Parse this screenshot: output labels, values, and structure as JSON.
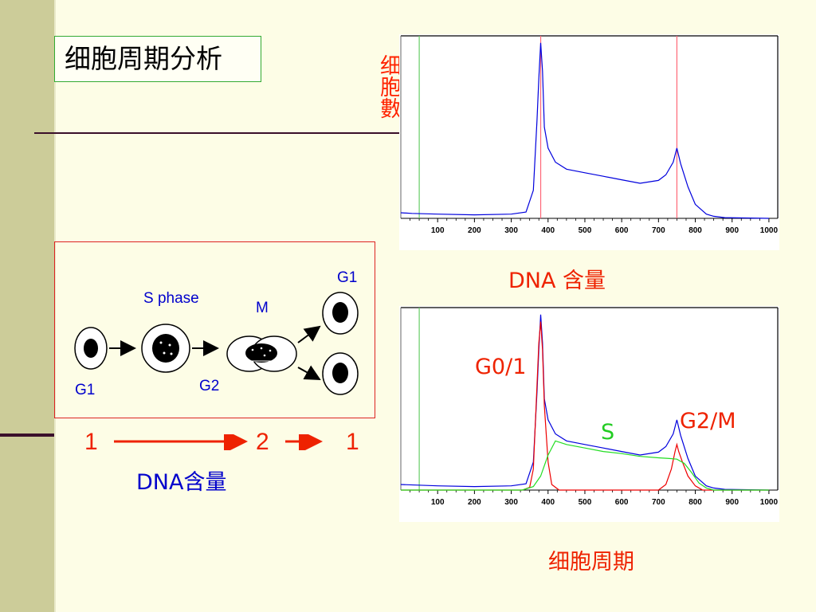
{
  "slide": {
    "title": "细胞周期分析",
    "colors": {
      "background": "#fdfde6",
      "band": "#cccc99",
      "red": "#ee2200",
      "blue": "#0000cc",
      "green": "#22cc22"
    }
  },
  "diagram": {
    "s_phase_label": "S phase",
    "m_label": "M",
    "g1_top_label": "G1",
    "g1_left_label": "G1",
    "g2_label": "G2",
    "scale_values": [
      "1",
      "2",
      "1"
    ],
    "dna_label": "DNA含量"
  },
  "chart_data": [
    {
      "type": "line",
      "xlabel": "DNA 含量",
      "ylabel": "细胞數",
      "xlim": [
        0,
        1024
      ],
      "x_ticks": [
        100,
        200,
        300,
        400,
        500,
        600,
        700,
        800,
        900,
        1000
      ],
      "x_tick_labels": [
        "100",
        "200",
        "300",
        "400",
        "500",
        "600",
        "700",
        "800",
        "900",
        "1000"
      ],
      "markers": [
        {
          "x": 50,
          "color": "#66cc66"
        },
        {
          "x": 380,
          "color": "#ff6677"
        },
        {
          "x": 750,
          "color": "#ff6677"
        }
      ],
      "series": [
        {
          "color": "#0000dd",
          "x": [
            0,
            30,
            100,
            200,
            300,
            340,
            360,
            370,
            375,
            380,
            385,
            390,
            400,
            420,
            450,
            500,
            550,
            600,
            650,
            700,
            720,
            740,
            750,
            760,
            780,
            800,
            830,
            850,
            880,
            1000
          ],
          "y": [
            8,
            7,
            6,
            5,
            6,
            9,
            40,
            140,
            200,
            250,
            210,
            130,
            100,
            80,
            70,
            65,
            60,
            55,
            50,
            54,
            62,
            80,
            100,
            78,
            45,
            20,
            6,
            3,
            1,
            0
          ]
        }
      ]
    },
    {
      "type": "line",
      "xlabel": "细胞周期",
      "xlim": [
        0,
        1024
      ],
      "x_ticks": [
        100,
        200,
        300,
        400,
        500,
        600,
        700,
        800,
        900,
        1000
      ],
      "x_tick_labels": [
        "100",
        "200",
        "300",
        "400",
        "500",
        "600",
        "700",
        "800",
        "900",
        "1000"
      ],
      "markers": [
        {
          "x": 50,
          "color": "#66cc66"
        }
      ],
      "annotations": [
        {
          "text": "G0/1",
          "color": "#ee2200"
        },
        {
          "text": "S",
          "color": "#22cc22"
        },
        {
          "text": "G2/M",
          "color": "#ee2200"
        }
      ],
      "series": [
        {
          "color": "#0000dd",
          "x": [
            0,
            100,
            200,
            300,
            340,
            360,
            370,
            375,
            380,
            385,
            390,
            400,
            420,
            450,
            500,
            550,
            600,
            650,
            700,
            720,
            740,
            750,
            760,
            780,
            800,
            830,
            850,
            880,
            1000
          ],
          "y": [
            8,
            6,
            5,
            6,
            9,
            40,
            140,
            200,
            250,
            210,
            130,
            100,
            80,
            70,
            65,
            60,
            55,
            50,
            54,
            62,
            80,
            100,
            78,
            45,
            20,
            6,
            3,
            1,
            0
          ]
        },
        {
          "color": "#ee0000",
          "x": [
            0,
            330,
            350,
            360,
            370,
            375,
            380,
            385,
            390,
            400,
            410,
            430,
            700,
            720,
            735,
            745,
            750,
            755,
            765,
            780,
            800,
            820,
            1000
          ],
          "y": [
            0,
            0,
            4,
            30,
            150,
            210,
            240,
            200,
            120,
            40,
            8,
            0,
            0,
            8,
            30,
            55,
            65,
            55,
            40,
            20,
            6,
            0,
            0
          ]
        },
        {
          "color": "#22dd22",
          "x": [
            0,
            330,
            360,
            380,
            400,
            420,
            450,
            500,
            550,
            600,
            650,
            700,
            730,
            750,
            770,
            790,
            810,
            830,
            850,
            1000
          ],
          "y": [
            0,
            0,
            5,
            20,
            50,
            70,
            65,
            60,
            55,
            52,
            48,
            46,
            45,
            44,
            38,
            25,
            10,
            3,
            0,
            0
          ]
        }
      ]
    }
  ]
}
